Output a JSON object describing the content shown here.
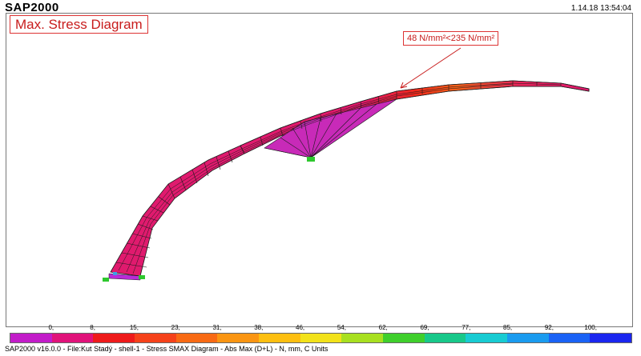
{
  "app": {
    "title": "SAP2000",
    "timestamp": "1.14.18 13:54:04"
  },
  "diagram": {
    "title": "Max. Stress Diagram",
    "annotation": "48 N/mm²<235 N/mm²"
  },
  "colorbar": {
    "ticks": [
      "0,",
      "8,",
      "15,",
      "23,",
      "31,",
      "38,",
      "46,",
      "54,",
      "62,",
      "69,",
      "77,",
      "85,",
      "92,",
      "100,"
    ],
    "colors": [
      "#c21cc9",
      "#e0137a",
      "#ee1b1b",
      "#f5421a",
      "#f86a14",
      "#fa9512",
      "#fdbf10",
      "#f2e21a",
      "#a8e020",
      "#3fcf2c",
      "#18c88a",
      "#18cbd2",
      "#1a9bef",
      "#1a62f5",
      "#1a26ef"
    ]
  },
  "structure": {
    "colors": {
      "shell_fill": "#e01a6e",
      "shell_mesh": "#1a1a1a",
      "high_stress_fill": "#f23c1e",
      "peak_stress_fill": "#f5621a",
      "support_fill": "#b92bd8",
      "support_marker": "#2ec82e",
      "annotation_color": "#c81c1c"
    }
  },
  "status_bar": {
    "text": "SAP2000 v16.0.0 - File:Kut Stadý - shell-1 -   Stress SMAX Diagram - Abs Max   (D+L) - N, mm, C Units"
  }
}
